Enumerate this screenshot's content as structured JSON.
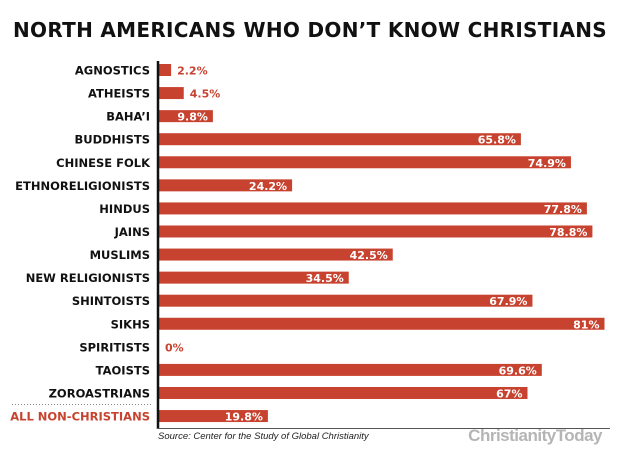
{
  "chart_data": {
    "type": "bar",
    "orientation": "horizontal",
    "title": "NORTH AMERICANS WHO DON’T KNOW CHRISTIANS",
    "categories": [
      "AGNOSTICS",
      "ATHEISTS",
      "BAHA’I",
      "BUDDHISTS",
      "CHINESE FOLK",
      "ETHNORELIGIONISTS",
      "HINDUS",
      "JAINS",
      "MUSLIMS",
      "NEW RELIGIONISTS",
      "SHINTOISTS",
      "SIKHS",
      "SPIRITISTS",
      "TAOISTS",
      "ZOROASTRIANS",
      "ALL NON-CHRISTIANS"
    ],
    "values": [
      2.2,
      4.5,
      9.8,
      65.8,
      74.9,
      24.2,
      77.8,
      78.8,
      42.5,
      34.5,
      67.9,
      81,
      0,
      69.6,
      67,
      19.8
    ],
    "data_labels": [
      "2.2%",
      "4.5%",
      "9.8%",
      "65.8%",
      "74.9%",
      "24.2%",
      "77.8%",
      "78.8%",
      "42.5%",
      "34.5%",
      "67.9%",
      "81%",
      "0%",
      "69.6%",
      "67%",
      "19.8%"
    ],
    "xlim": [
      0,
      100
    ],
    "grid": false,
    "colors": {
      "bar": "#c8432f",
      "highlight_label": "#c8432f",
      "label": "#111111"
    },
    "source": "Source: Center for the Study of Global Christianity"
  },
  "logo": "ChristianityToday"
}
